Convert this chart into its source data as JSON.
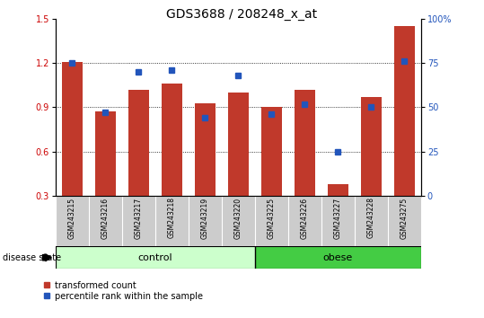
{
  "title": "GDS3688 / 208248_x_at",
  "samples": [
    "GSM243215",
    "GSM243216",
    "GSM243217",
    "GSM243218",
    "GSM243219",
    "GSM243220",
    "GSM243225",
    "GSM243226",
    "GSM243227",
    "GSM243228",
    "GSM243275"
  ],
  "red_values": [
    1.21,
    0.87,
    1.02,
    1.06,
    0.93,
    1.0,
    0.9,
    1.02,
    0.38,
    0.97,
    1.45
  ],
  "blue_pct": [
    75,
    47,
    70,
    71,
    44,
    68,
    46,
    52,
    25,
    50,
    76
  ],
  "ylim_left": [
    0.3,
    1.5
  ],
  "ylim_right": [
    0,
    100
  ],
  "yticks_left": [
    0.3,
    0.6,
    0.9,
    1.2,
    1.5
  ],
  "yticks_right": [
    0,
    25,
    50,
    75,
    100
  ],
  "yticklabels_right": [
    "0",
    "25",
    "50",
    "75",
    "100%"
  ],
  "n_control": 6,
  "n_obese": 5,
  "control_label": "control",
  "obese_label": "obese",
  "disease_label": "disease state",
  "bar_color": "#c0392b",
  "dot_color": "#2255bb",
  "bar_bottom": 0.3,
  "legend_red": "transformed count",
  "legend_blue": "percentile rank within the sample",
  "title_fontsize": 10,
  "tick_fontsize": 7,
  "label_fontsize": 8,
  "axis_color_left": "#cc0000",
  "axis_color_right": "#2255bb",
  "control_color": "#ccffcc",
  "obese_color": "#44cc44",
  "gray_bg": "#cccccc"
}
